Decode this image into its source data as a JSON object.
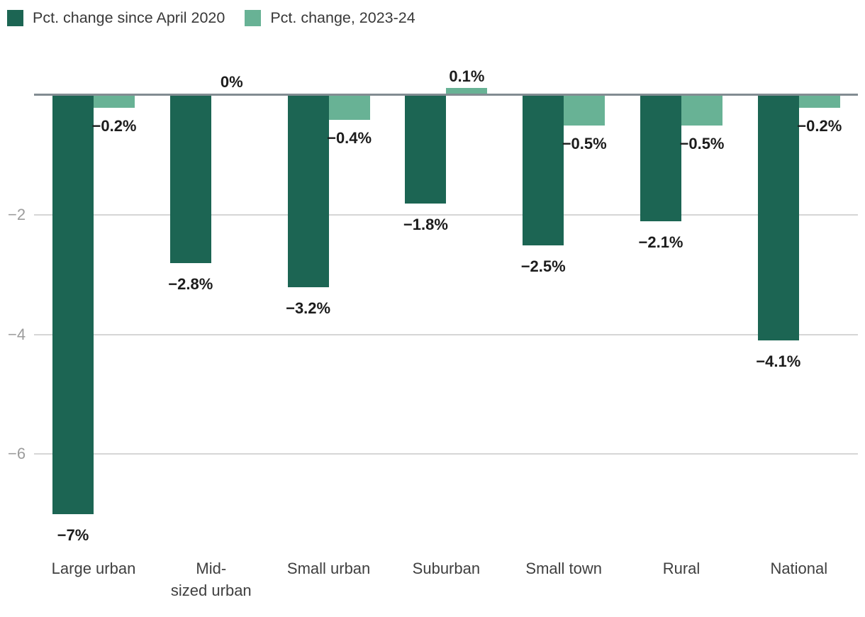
{
  "legend": {
    "items": [
      {
        "label": "Pct. change since April 2020",
        "color": "#1c6553"
      },
      {
        "label": "Pct. change, 2023-24",
        "color": "#68b295"
      }
    ]
  },
  "axis": {
    "ytick_labels": [
      "−2",
      "−4",
      "−6"
    ],
    "ytick_values": [
      -2,
      -4,
      -6
    ],
    "tick_color": "#9c9c9c",
    "gridline_color": "#d6d6d6",
    "zero_line_color": "#828c92"
  },
  "chart_data": {
    "type": "bar",
    "title": "",
    "categories": [
      "Large urban",
      "Mid-sized urban",
      "Small urban",
      "Suburban",
      "Small town",
      "Rural",
      "National"
    ],
    "category_label_lines": [
      [
        "Large urban",
        ""
      ],
      [
        "Mid-",
        "sized urban"
      ],
      [
        "Small urban",
        ""
      ],
      [
        "Suburban",
        ""
      ],
      [
        "Small town",
        ""
      ],
      [
        "Rural",
        ""
      ],
      [
        "National",
        ""
      ]
    ],
    "series": [
      {
        "name": "Pct. change since April 2020",
        "color": "#1c6553",
        "values": [
          -7,
          -2.8,
          -3.2,
          -1.8,
          -2.5,
          -2.1,
          -4.1
        ],
        "labels": [
          "−7%",
          "−2.8%",
          "−3.2%",
          "−1.8%",
          "−2.5%",
          "−2.1%",
          "−4.1%"
        ]
      },
      {
        "name": "Pct. change, 2023-24",
        "color": "#68b295",
        "values": [
          -0.2,
          0,
          -0.4,
          0.1,
          -0.5,
          -0.5,
          -0.2
        ],
        "labels": [
          "−0.2%",
          "0%",
          "−0.4%",
          "0.1%",
          "−0.5%",
          "−0.5%",
          "−0.2%"
        ]
      }
    ],
    "xlabel": "",
    "ylabel": "",
    "ylim": [
      -7.5,
      0.6
    ],
    "grid": true,
    "legend_position": "top-left",
    "background": "#ffffff"
  }
}
